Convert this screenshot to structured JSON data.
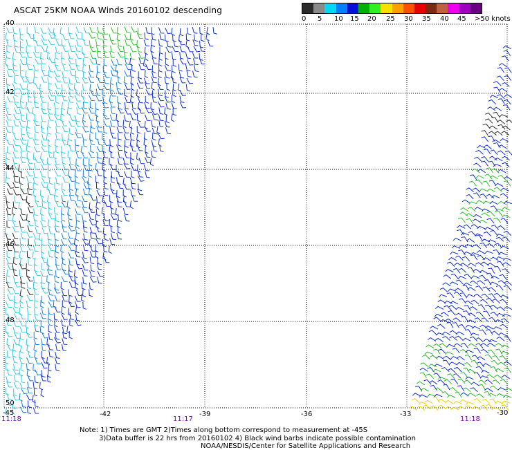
{
  "title": "ASCAT 25KM NOAA Winds 20160102 descending",
  "legend": {
    "colors": [
      "#2a2a2a",
      "#8a8a8a",
      "#00d8f8",
      "#0080ff",
      "#0010d8",
      "#00b000",
      "#30f020",
      "#f8e000",
      "#ffa000",
      "#ff5000",
      "#e80000",
      "#7a2a10",
      "#c06040",
      "#f000f0",
      "#a000c0",
      "#6a0080"
    ],
    "labels": [
      "0",
      "5",
      "10",
      "15",
      "20",
      "25",
      "30",
      "35",
      "40",
      "45",
      ">50 knots"
    ]
  },
  "x_axis": {
    "labels": [
      "-45",
      "-42",
      "-39",
      "-36",
      "-33",
      "-30"
    ]
  },
  "y_axis": {
    "labels": [
      "40",
      "42",
      "44",
      "46",
      "48",
      "50"
    ]
  },
  "times": [
    "11:18",
    "11:17",
    "11:18"
  ],
  "notes": [
    "Note: 1) Times are GMT 2)Times along bottom correspond to measurement at -45S",
    "3)Data buffer is 22 hrs from 20160102 4) Black wind barbs indicate possible contamination",
    "NOAA/NESDIS/Center for Satellite Applications and Research"
  ]
}
